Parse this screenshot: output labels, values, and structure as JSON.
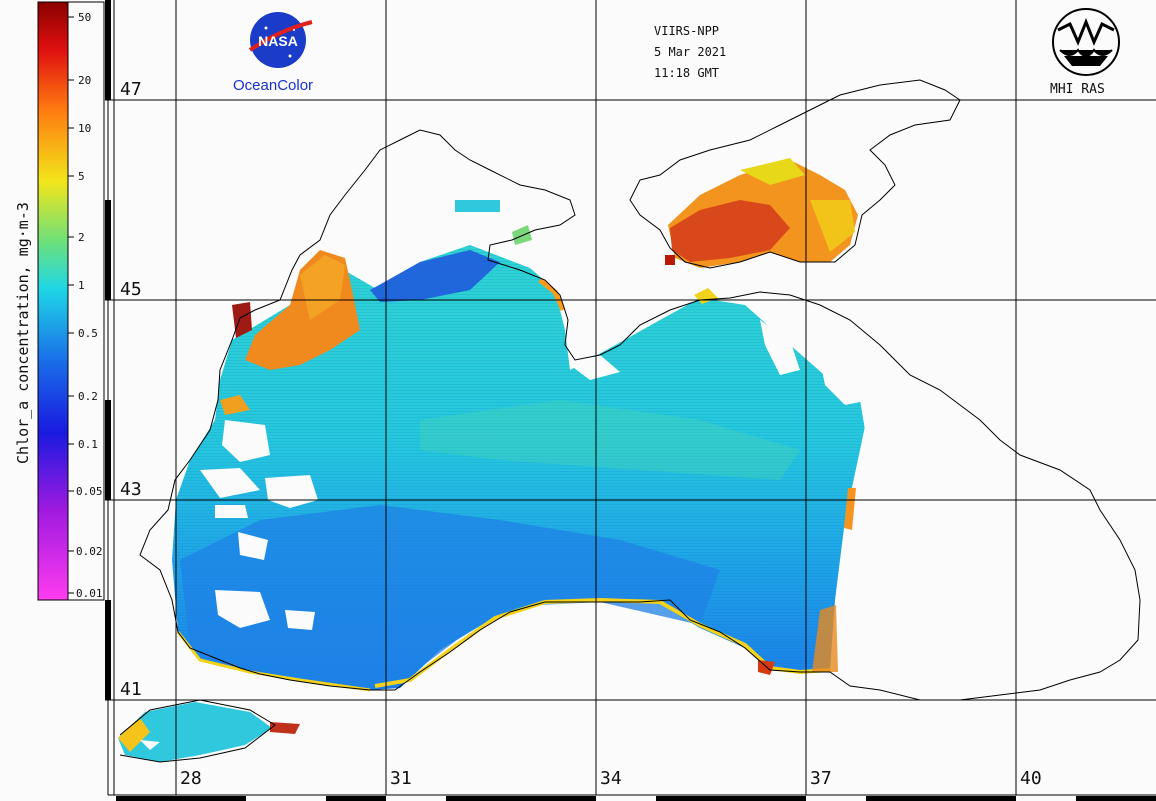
{
  "colorbar": {
    "title": "Chlor_a concentration, mg·m-3",
    "ticks": [
      "50",
      "20",
      "10",
      "5",
      "2",
      "1",
      "0.5",
      "0.2",
      "0.1",
      "0.05",
      "0.02",
      "0.01"
    ]
  },
  "header": {
    "sensor": "VIIRS-NPP",
    "date": "5 Mar 2021",
    "time": "11:18 GMT",
    "left_logo_text": "NASA",
    "left_logo_caption": "OceanColor",
    "right_logo_caption": "MHI RAS"
  },
  "grid": {
    "latitudes": [
      "47",
      "45",
      "43",
      "41"
    ],
    "longitudes": [
      "28",
      "31",
      "34",
      "37",
      "40"
    ]
  },
  "colors": {
    "low": "#1e46d8",
    "mid": "#1fd3d8",
    "high": "#ff9a1a",
    "very_high": "#b41a0a",
    "coast": "#000000",
    "land": "#fbfbfb"
  }
}
